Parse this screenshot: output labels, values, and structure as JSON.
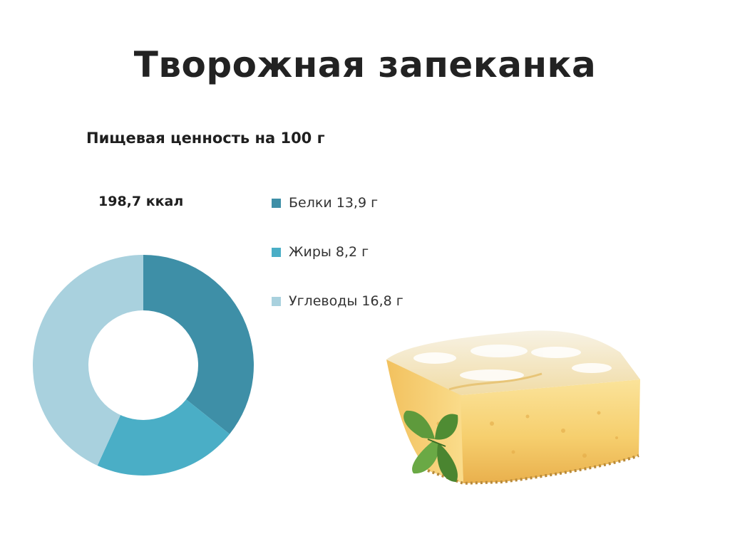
{
  "slide": {
    "title": "Творожная запеканка"
  },
  "chart_data": {
    "type": "pie",
    "variant": "donut",
    "title": "Пищевая ценность на 100 г",
    "center_note": "198,7 ккал",
    "legend_position": "right",
    "unit": "г",
    "series": [
      {
        "name": "Белки",
        "value": 13.9,
        "label": "Белки 13,9 г",
        "color": "#3e8fa7"
      },
      {
        "name": "Жиры",
        "value": 8.2,
        "label": "Жиры 8,2 г",
        "color": "#4aaec6"
      },
      {
        "name": "Углеводы",
        "value": 16.8,
        "label": "Углеводы 16,8 г",
        "color": "#a9d1de"
      }
    ]
  }
}
